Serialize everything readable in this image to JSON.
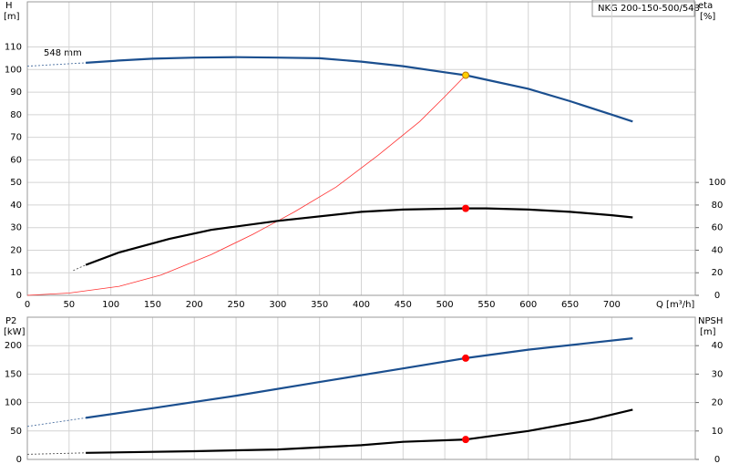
{
  "chart_data": [
    {
      "type": "line",
      "label": "NKG 200-150-500/548",
      "annotation": "548 mm",
      "y_label": "H",
      "y_unit": "[m]",
      "y2_label": "eta",
      "y2_unit": "[%]",
      "x_label": "Q [m³/h]",
      "xlim": [
        0,
        800
      ],
      "xticks": [
        0,
        50,
        100,
        150,
        200,
        250,
        300,
        350,
        400,
        450,
        500,
        550,
        600,
        650,
        700
      ],
      "ylim": [
        0,
        130
      ],
      "yticks": [
        0,
        10,
        20,
        30,
        40,
        50,
        60,
        70,
        80,
        90,
        100,
        110
      ],
      "y2lim": [
        0,
        260
      ],
      "y2ticks": [
        0,
        20,
        40,
        60,
        80,
        100
      ],
      "grid": true,
      "series": [
        {
          "style": "dashed",
          "color": "#4a6fa0",
          "x": [
            0,
            70
          ],
          "values": [
            101.5,
            103
          ]
        },
        {
          "style": "solid",
          "color": "#1b4f8f",
          "x": [
            70,
            110,
            150,
            200,
            250,
            300,
            350,
            400,
            450,
            500,
            525,
            550,
            600,
            650,
            700,
            725
          ],
          "values": [
            103,
            104,
            104.8,
            105.3,
            105.5,
            105.3,
            105,
            103.5,
            101.5,
            98.8,
            97.5,
            95.5,
            91.5,
            86,
            80,
            77
          ]
        },
        {
          "style": "thin",
          "color": "#ff3030",
          "x": [
            0,
            50,
            110,
            160,
            220,
            270,
            300,
            320,
            370,
            420,
            470,
            500,
            525
          ],
          "values": [
            0,
            1,
            4,
            9,
            18,
            27,
            33,
            37,
            48,
            62,
            77,
            88,
            97.5
          ]
        },
        {
          "style": "dashed",
          "color": "#555555",
          "axis": "y2",
          "x": [
            55,
            70
          ],
          "values": [
            22,
            27
          ]
        },
        {
          "style": "solid",
          "color": "#000000",
          "axis": "y2",
          "x": [
            70,
            110,
            170,
            220,
            300,
            400,
            450,
            525,
            550,
            600,
            650,
            700,
            725
          ],
          "values": [
            27,
            38,
            50,
            58,
            66,
            74,
            76,
            77,
            77,
            76,
            74,
            71,
            69
          ]
        },
        {
          "style": "point",
          "color": "#ffd000",
          "x": [
            525
          ],
          "values": [
            97.5
          ]
        },
        {
          "style": "point",
          "color": "#ff0000",
          "axis": "y2",
          "x": [
            525
          ],
          "values": [
            77
          ]
        }
      ]
    },
    {
      "type": "line",
      "y_label": "P2",
      "y_unit": "[kW]",
      "y2_label": "NPSH",
      "y2_unit": "[m]",
      "xlim": [
        0,
        800
      ],
      "ylim": [
        0,
        250
      ],
      "yticks": [
        0,
        50,
        100,
        150,
        200
      ],
      "y2lim": [
        0,
        50
      ],
      "y2ticks": [
        0,
        10,
        20,
        30,
        40
      ],
      "grid": true,
      "series": [
        {
          "style": "dashed",
          "color": "#4a6fa0",
          "x": [
            0,
            70
          ],
          "values": [
            58,
            73
          ]
        },
        {
          "style": "solid",
          "color": "#1b4f8f",
          "x": [
            70,
            150,
            250,
            350,
            450,
            525,
            600,
            725
          ],
          "values": [
            73,
            90,
            112,
            136,
            160,
            178,
            193,
            213
          ]
        },
        {
          "style": "dashed",
          "color": "#555555",
          "axis": "y2",
          "x": [
            0,
            70
          ],
          "values": [
            1.8,
            2.3
          ]
        },
        {
          "style": "solid",
          "color": "#000000",
          "axis": "y2",
          "x": [
            70,
            200,
            300,
            400,
            450,
            525,
            600,
            675,
            725
          ],
          "values": [
            2.3,
            2.9,
            3.5,
            5,
            6.2,
            7,
            10,
            14,
            17.5
          ]
        },
        {
          "style": "point",
          "color": "#ff0000",
          "x": [
            525
          ],
          "values": [
            178
          ]
        },
        {
          "style": "point",
          "color": "#ff0000",
          "axis": "y2",
          "x": [
            525
          ],
          "values": [
            7
          ]
        }
      ]
    }
  ]
}
